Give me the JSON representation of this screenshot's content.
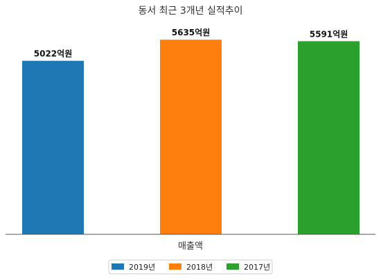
{
  "chart_data": {
    "type": "bar",
    "title": "동서 최근 3개년 실적추이",
    "categories": [
      "매출액"
    ],
    "series": [
      {
        "name": "2019년",
        "values": [
          5022
        ],
        "value_label": "5022억원",
        "color": "#1f77b4"
      },
      {
        "name": "2018년",
        "values": [
          5635
        ],
        "value_label": "5635억원",
        "color": "#ff7f0e"
      },
      {
        "name": "2017년",
        "values": [
          5591
        ],
        "value_label": "5591억원",
        "color": "#2ca02c"
      }
    ],
    "xlabel": "",
    "ylabel": "",
    "ylim": [
      0,
      6000
    ],
    "grid": false,
    "legend_position": "bottom-center"
  }
}
